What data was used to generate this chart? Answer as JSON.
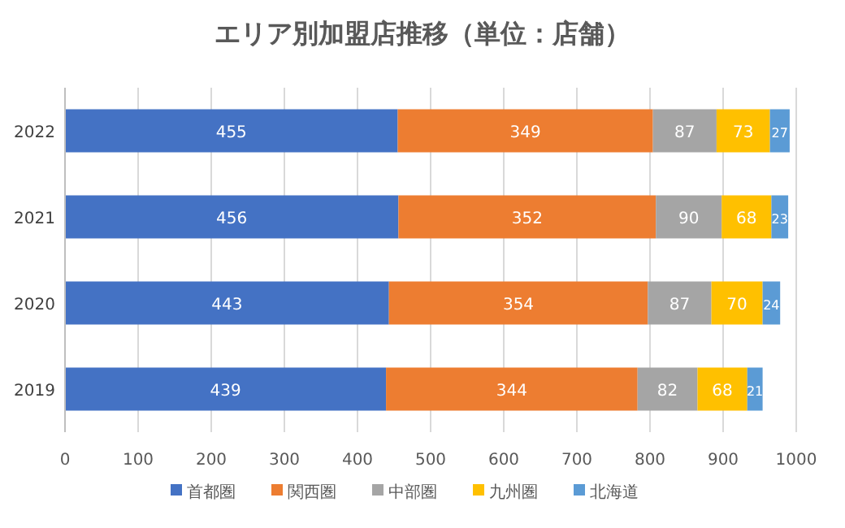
{
  "chart_data": {
    "type": "bar",
    "title": "エリア別加盟店推移（単位：店舗）",
    "orientation": "horizontal",
    "stacked": true,
    "categories": [
      "2022",
      "2021",
      "2020",
      "2019"
    ],
    "series": [
      {
        "name": "首都圏",
        "color": "#4472c4",
        "values": [
          455,
          456,
          443,
          439
        ]
      },
      {
        "name": "関西圏",
        "color": "#ed7d31",
        "values": [
          349,
          352,
          354,
          344
        ]
      },
      {
        "name": "中部圏",
        "color": "#a5a5a5",
        "values": [
          87,
          90,
          87,
          82
        ]
      },
      {
        "name": "九州圏",
        "color": "#ffc000",
        "values": [
          73,
          68,
          70,
          68
        ]
      },
      {
        "name": "北海道",
        "color": "#5b9bd5",
        "values": [
          27,
          23,
          24,
          21
        ]
      }
    ],
    "xlim": [
      0,
      1000
    ],
    "xticks": [
      0,
      100,
      200,
      300,
      400,
      500,
      600,
      700,
      800,
      900,
      1000
    ],
    "grid": "x",
    "legend": "bottom",
    "data_labels": true
  }
}
